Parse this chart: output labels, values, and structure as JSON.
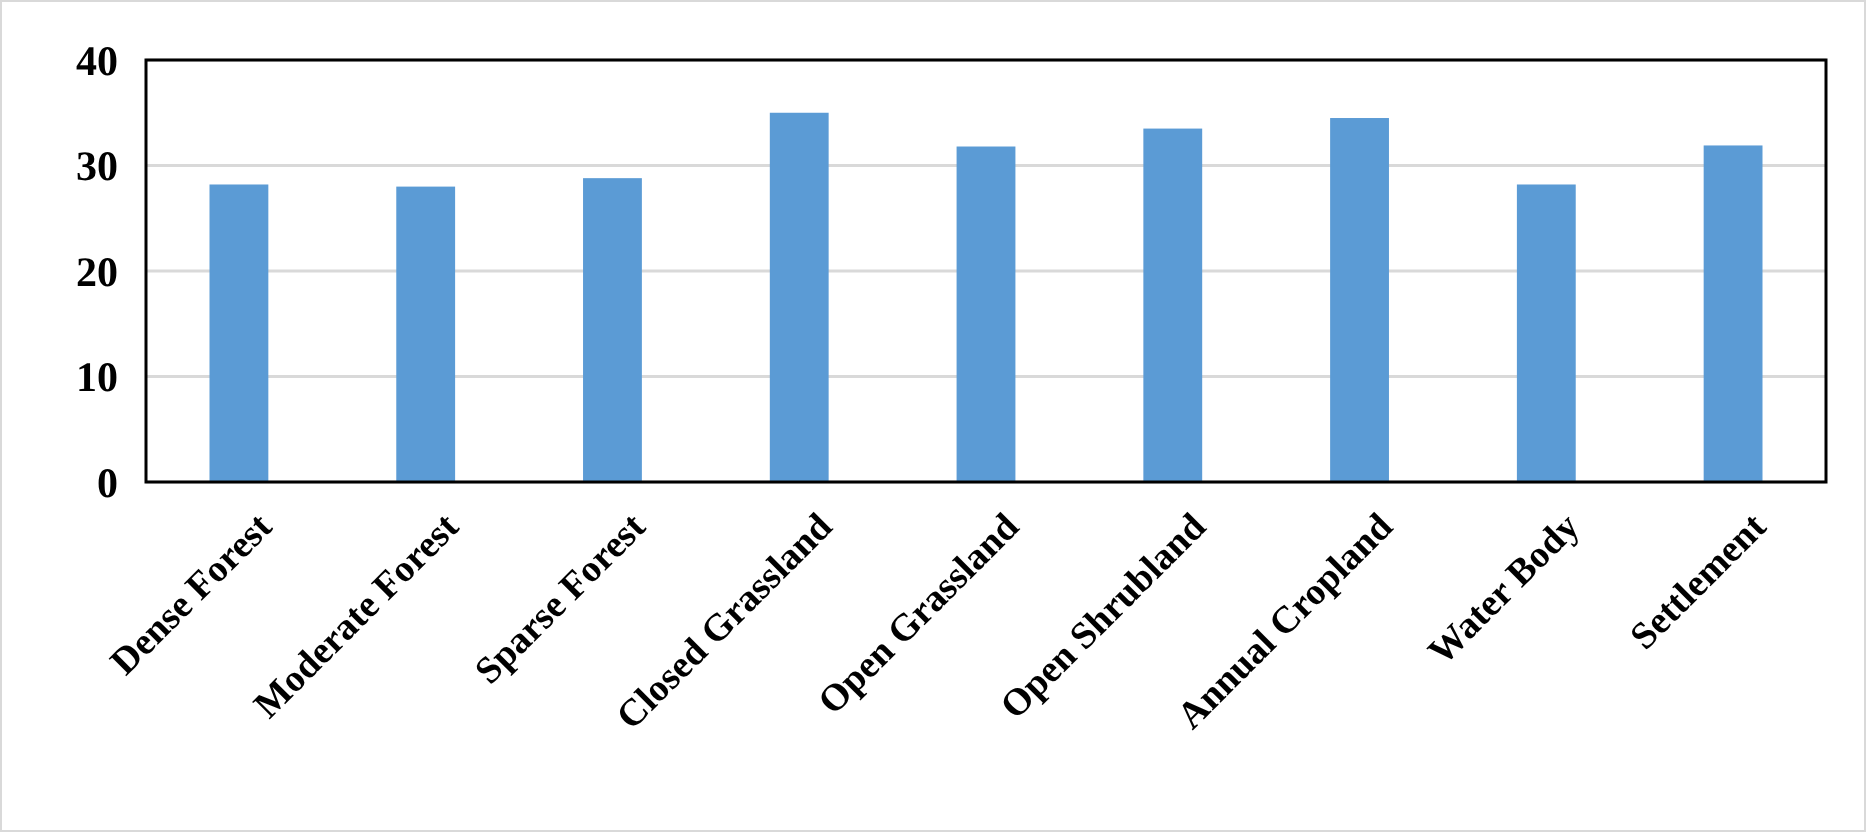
{
  "chart_data": {
    "type": "bar",
    "categories": [
      "Dense Forest",
      "Moderate Forest",
      "Sparse Forest",
      "Closed Grassland",
      "Open Grassland",
      "Open Shrubland",
      "Annual Cropland",
      "Water Body",
      "Settlement"
    ],
    "values": [
      28.2,
      28.0,
      28.8,
      35.0,
      31.8,
      33.5,
      34.5,
      28.2,
      31.9
    ],
    "color": "#5b9bd5",
    "ylim": [
      0,
      40
    ],
    "yticks": [
      0,
      10,
      20,
      30,
      40
    ],
    "grid": "y"
  }
}
